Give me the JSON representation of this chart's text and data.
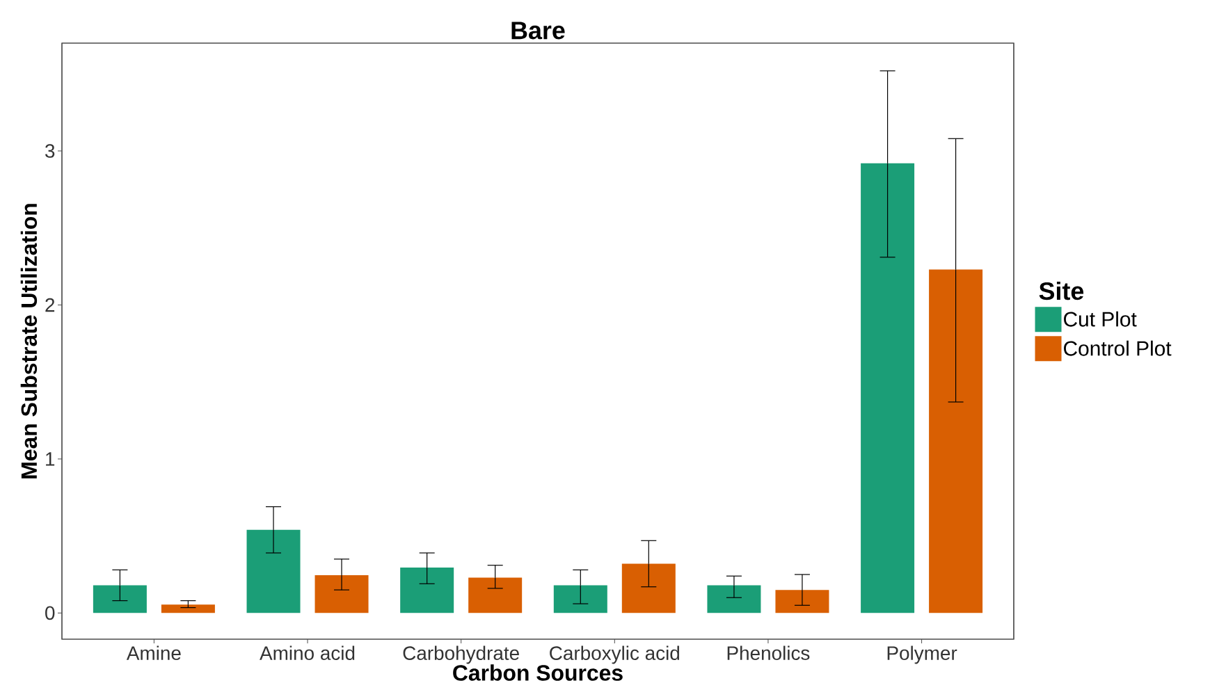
{
  "chart_data": {
    "type": "bar",
    "title": "Bare",
    "xlabel": "Carbon Sources",
    "ylabel": "Mean Substrate Utilization",
    "legend_title": "Site",
    "legend": "right",
    "grid": false,
    "categories": [
      "Amine",
      "Amino acid",
      "Carbohydrate",
      "Carboxylic acid",
      "Phenolics",
      "Polymer"
    ],
    "ylim": [
      -0.17,
      3.7
    ],
    "yticks": [
      0,
      1,
      2,
      3
    ],
    "series": [
      {
        "name": "Cut Plot",
        "color": "#1b9e77",
        "values": [
          0.18,
          0.54,
          0.295,
          0.18,
          0.18,
          2.92
        ],
        "errors": [
          [
            0.08,
            0.28
          ],
          [
            0.39,
            0.69
          ],
          [
            0.19,
            0.39
          ],
          [
            0.06,
            0.28
          ],
          [
            0.1,
            0.24
          ],
          [
            2.31,
            3.52
          ]
        ]
      },
      {
        "name": "Control Plot",
        "color": "#d95f02",
        "values": [
          0.055,
          0.245,
          0.23,
          0.32,
          0.15,
          2.23
        ],
        "errors": [
          [
            0.035,
            0.08
          ],
          [
            0.15,
            0.35
          ],
          [
            0.16,
            0.31
          ],
          [
            0.17,
            0.47
          ],
          [
            0.05,
            0.25
          ],
          [
            1.37,
            3.08
          ]
        ]
      }
    ]
  }
}
